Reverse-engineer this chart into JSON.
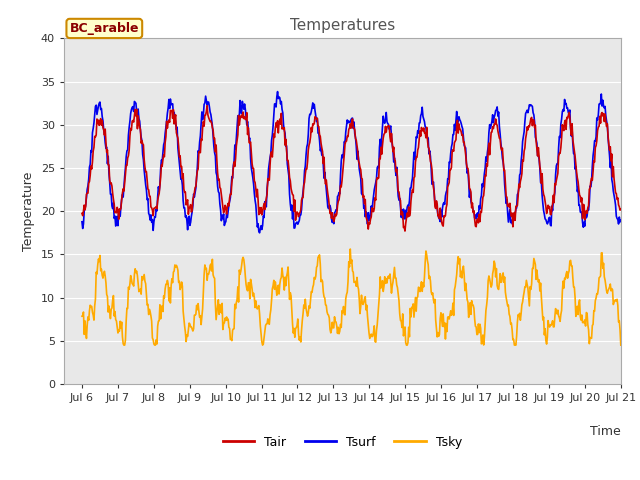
{
  "title": "Temperatures",
  "xlabel": "Time",
  "ylabel": "Temperature",
  "label_site": "BC_arable",
  "ylim": [
    0,
    40
  ],
  "xlim_days": [
    5.5,
    21.0
  ],
  "xtick_days": [
    6,
    7,
    8,
    9,
    10,
    11,
    12,
    13,
    14,
    15,
    16,
    17,
    18,
    19,
    20,
    21
  ],
  "xtick_labels": [
    "Jul 6",
    "Jul 7",
    "Jul 8",
    "Jul 9",
    "Jul 10",
    "Jul 11",
    "Jul 12",
    "Jul 13",
    "Jul 14",
    "Jul 15",
    "Jul 16",
    "Jul 17",
    "Jul 18",
    "Jul 19",
    "Jul 20",
    "Jul 21"
  ],
  "ytick_vals": [
    0,
    5,
    10,
    15,
    20,
    25,
    30,
    35,
    40
  ],
  "color_Tair": "#cc0000",
  "color_Tsurf": "#0000ee",
  "color_Tsky": "#ffaa00",
  "bg_color": "#e8e8e8",
  "fig_bg_color": "#ffffff",
  "linewidth_main": 1.2,
  "legend_Tair": "Tair",
  "legend_Tsurf": "Tsurf",
  "legend_Tsky": "Tsky",
  "site_box_facecolor": "#ffffcc",
  "site_box_edgecolor": "#cc8800",
  "site_text_color": "#8b0000",
  "title_color": "#555555",
  "n_points": 720,
  "seed": 42
}
